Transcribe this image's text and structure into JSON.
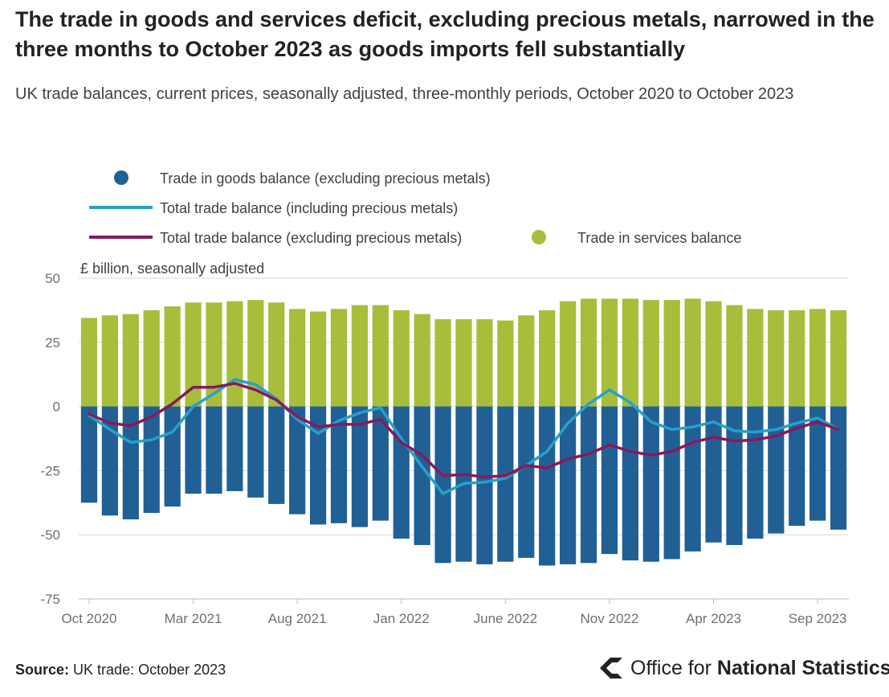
{
  "header": {
    "title": "The trade in goods and services deficit, excluding precious metals, narrowed in the three months to October 2023 as goods imports fell substantially",
    "subtitle": "UK trade balances, current prices, seasonally adjusted, three-monthly periods, October 2020 to October 2023"
  },
  "footer": {
    "source_label": "Source:",
    "source_text": "UK trade: October 2023",
    "logo_text_regular": "Office for",
    "logo_text_bold": "National Statistics"
  },
  "colors": {
    "goods": "#206095",
    "services": "#a8bd3a",
    "total_incl": "#27a0cc",
    "total_excl": "#871a5b",
    "grid": "#d9d9d9",
    "axis_text": "#707070"
  },
  "chart_data": {
    "type": "bar",
    "ylabel": "£ billion, seasonally adjusted",
    "ylim": [
      -75,
      50
    ],
    "yticks": [
      50,
      25,
      0,
      -25,
      -50,
      -75
    ],
    "grid": true,
    "legend_position": "top-left",
    "x_tick_labels": [
      {
        "index": 0,
        "label": "Oct 2020"
      },
      {
        "index": 5,
        "label": "Mar 2021"
      },
      {
        "index": 10,
        "label": "Aug 2021"
      },
      {
        "index": 15,
        "label": "Jan 2022"
      },
      {
        "index": 20,
        "label": "June 2022"
      },
      {
        "index": 25,
        "label": "Nov 2022"
      },
      {
        "index": 30,
        "label": "Apr 2023"
      },
      {
        "index": 35,
        "label": "Sep 2023"
      }
    ],
    "x": [
      "Oct 2020",
      "Nov 2020",
      "Dec 2020",
      "Jan 2021",
      "Feb 2021",
      "Mar 2021",
      "Apr 2021",
      "May 2021",
      "Jun 2021",
      "Jul 2021",
      "Aug 2021",
      "Sep 2021",
      "Oct 2021",
      "Nov 2021",
      "Dec 2021",
      "Jan 2022",
      "Feb 2022",
      "Mar 2022",
      "Apr 2022",
      "May 2022",
      "Jun 2022",
      "Jul 2022",
      "Aug 2022",
      "Sep 2022",
      "Oct 2022",
      "Nov 2022",
      "Dec 2022",
      "Jan 2023",
      "Feb 2023",
      "Mar 2023",
      "Apr 2023",
      "May 2023",
      "Jun 2023",
      "Jul 2023",
      "Aug 2023",
      "Sep 2023",
      "Oct 2023"
    ],
    "series": [
      {
        "name": "Trade in goods balance (excluding precious metals)",
        "kind": "bar",
        "values": [
          -37.5,
          -42.5,
          -44,
          -41.5,
          -39,
          -34,
          -34,
          -33,
          -35.5,
          -38,
          -42,
          -46,
          -45.5,
          -47,
          -44.5,
          -51.5,
          -54,
          -61,
          -60.5,
          -61.5,
          -60.5,
          -59,
          -62,
          -61.5,
          -61,
          -57.5,
          -60,
          -60.5,
          -59.5,
          -56.5,
          -53,
          -54,
          -51.5,
          -49.5,
          -46.5,
          -44.5,
          -48
        ]
      },
      {
        "name": "Trade in services balance",
        "kind": "bar",
        "values": [
          34.5,
          35.5,
          36,
          37.5,
          39,
          40.5,
          40.5,
          41,
          41.5,
          40.5,
          38,
          37,
          38,
          39.5,
          39.5,
          37.5,
          36,
          34,
          34,
          34,
          33.5,
          35.5,
          37.5,
          41,
          42,
          42,
          42,
          41.5,
          41.5,
          42,
          41,
          39.5,
          38,
          37.5,
          37.5,
          38,
          37.5
        ]
      },
      {
        "name": "Total trade balance (including precious metals)",
        "kind": "line",
        "values": [
          -3.5,
          -9,
          -14,
          -13,
          -10,
          0,
          5,
          10.5,
          8.5,
          3,
          -5,
          -10.5,
          -5.5,
          -2.5,
          -0.5,
          -12.5,
          -23.5,
          -34,
          -30,
          -29.5,
          -28,
          -23,
          -17.5,
          -6.5,
          1,
          6.5,
          1.5,
          -6,
          -9,
          -8,
          -6,
          -9.5,
          -10,
          -9,
          -6.5,
          -4.5,
          -9
        ]
      },
      {
        "name": "Total trade balance (excluding precious metals)",
        "kind": "line",
        "values": [
          -3,
          -6.5,
          -7.5,
          -4,
          1,
          7.5,
          7.5,
          9,
          6.5,
          2.5,
          -4,
          -8,
          -7,
          -7,
          -5,
          -14,
          -19,
          -27,
          -26.5,
          -27.5,
          -27,
          -23,
          -24,
          -20.5,
          -18.5,
          -15,
          -17.5,
          -19,
          -17.5,
          -14,
          -12,
          -13.5,
          -13,
          -11.5,
          -8.5,
          -6,
          -9
        ]
      }
    ]
  }
}
